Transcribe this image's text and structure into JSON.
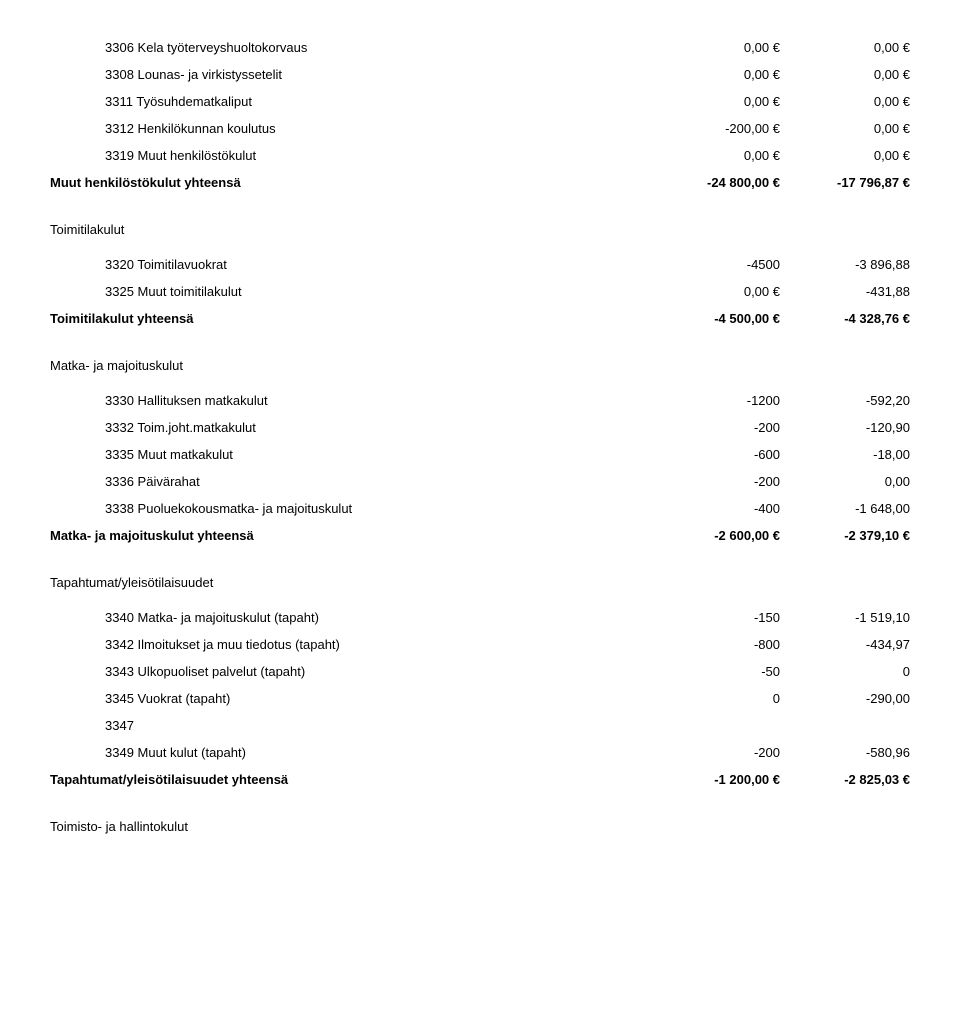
{
  "henkilostokulut": {
    "items": [
      {
        "code": "3306",
        "label": "Kela työterveyshuoltokorvaus",
        "v1": "0,00 €",
        "v2": "0,00 €"
      },
      {
        "code": "3308",
        "label": "Lounas- ja virkistyssetelit",
        "v1": "0,00 €",
        "v2": "0,00 €"
      },
      {
        "code": "3311",
        "label": "Työsuhdematkaliput",
        "v1": "0,00 €",
        "v2": "0,00 €"
      },
      {
        "code": "3312",
        "label": "Henkilökunnan koulutus",
        "v1": "-200,00 €",
        "v2": "0,00 €"
      },
      {
        "code": "3319",
        "label": "Muut henkilöstökulut",
        "v1": "0,00 €",
        "v2": "0,00 €"
      }
    ],
    "total_label": "Muut henkilöstökulut yhteensä",
    "total_v1": "-24 800,00 €",
    "total_v2": "-17 796,87 €"
  },
  "toimitilakulut": {
    "title": "Toimitilakulut",
    "items": [
      {
        "code": "3320",
        "label": "Toimitilavuokrat",
        "v1": "-4500",
        "v2": "-3 896,88"
      },
      {
        "code": "3325",
        "label": "Muut toimitilakulut",
        "v1": "0,00 €",
        "v2": "-431,88"
      }
    ],
    "total_label": "Toimitilakulut yhteensä",
    "total_v1": "-4 500,00 €",
    "total_v2": "-4 328,76 €"
  },
  "matkakulut": {
    "title": "Matka- ja majoituskulut",
    "items": [
      {
        "code": "3330",
        "label": "Hallituksen matkakulut",
        "v1": "-1200",
        "v2": "-592,20"
      },
      {
        "code": "3332",
        "label": "Toim.joht.matkakulut",
        "v1": "-200",
        "v2": "-120,90"
      },
      {
        "code": "3335",
        "label": "Muut matkakulut",
        "v1": "-600",
        "v2": "-18,00"
      },
      {
        "code": "3336",
        "label": "Päivärahat",
        "v1": "-200",
        "v2": "0,00"
      },
      {
        "code": "3338",
        "label": "Puoluekokousmatka- ja majoituskulut",
        "v1": "-400",
        "v2": "-1 648,00"
      }
    ],
    "total_label": "Matka- ja majoituskulut yhteensä",
    "total_v1": "-2 600,00 €",
    "total_v2": "-2 379,10 €"
  },
  "tapahtumat": {
    "title": "Tapahtumat/yleisötilaisuudet",
    "items": [
      {
        "code": "3340",
        "label": "Matka- ja majoituskulut (tapaht)",
        "v1": "-150",
        "v2": "-1 519,10"
      },
      {
        "code": "3342",
        "label": "Ilmoitukset ja muu tiedotus (tapaht)",
        "v1": "-800",
        "v2": "-434,97"
      },
      {
        "code": "3343",
        "label": "Ulkopuoliset palvelut (tapaht)",
        "v1": "-50",
        "v2": "0"
      },
      {
        "code": "3345",
        "label": "Vuokrat (tapaht)",
        "v1": "0",
        "v2": "-290,00"
      },
      {
        "code": "3347",
        "label": "",
        "v1": "",
        "v2": ""
      },
      {
        "code": "3349",
        "label": "Muut kulut (tapaht)",
        "v1": "-200",
        "v2": "-580,96"
      }
    ],
    "total_label": "Tapahtumat/yleisötilaisuudet yhteensä",
    "total_v1": "-1 200,00 €",
    "total_v2": "-2 825,03 €"
  },
  "toimisto": {
    "title": "Toimisto- ja hallintokulut"
  }
}
